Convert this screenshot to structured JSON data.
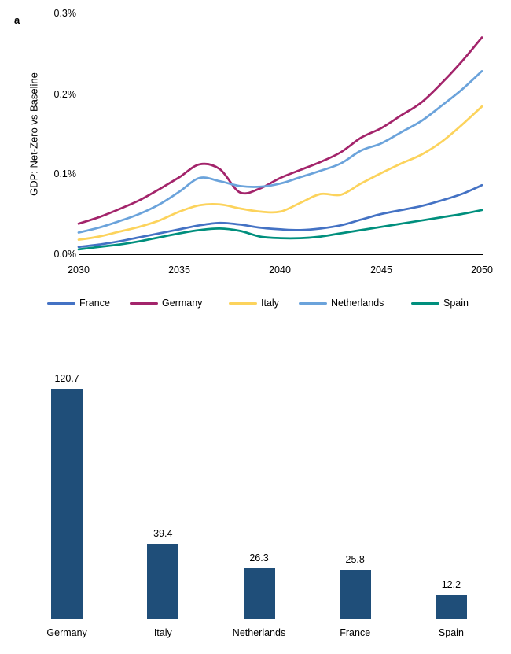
{
  "panel_label": "a",
  "chart_data": [
    {
      "type": "line",
      "y_axis_title": "GDP: Net-Zero vs Baseline",
      "unit": "%",
      "ylim": [
        0.0,
        0.3
      ],
      "y_ticks": [
        "0.3%",
        "0.2%",
        "0.1%",
        "0.0%"
      ],
      "x_ticks": [
        "2030",
        "2035",
        "2040",
        "2045",
        "2050"
      ],
      "xlim": [
        2030,
        2050
      ],
      "grid": false,
      "legend_position": "bottom",
      "x": [
        2030,
        2031,
        2032,
        2033,
        2034,
        2035,
        2036,
        2037,
        2038,
        2039,
        2040,
        2041,
        2042,
        2043,
        2044,
        2045,
        2046,
        2047,
        2048,
        2049,
        2050
      ],
      "series": [
        {
          "name": "France",
          "color": "#4472C4",
          "values": [
            0.009,
            0.012,
            0.016,
            0.021,
            0.026,
            0.031,
            0.036,
            0.039,
            0.037,
            0.033,
            0.031,
            0.03,
            0.032,
            0.036,
            0.043,
            0.05,
            0.055,
            0.06,
            0.067,
            0.075,
            0.086
          ]
        },
        {
          "name": "Germany",
          "color": "#A3246B",
          "values": [
            0.038,
            0.046,
            0.056,
            0.067,
            0.081,
            0.096,
            0.112,
            0.106,
            0.077,
            0.082,
            0.095,
            0.105,
            0.115,
            0.127,
            0.145,
            0.157,
            0.173,
            0.189,
            0.213,
            0.24,
            0.27
          ]
        },
        {
          "name": "Italy",
          "color": "#FCD35C",
          "values": [
            0.018,
            0.022,
            0.028,
            0.034,
            0.042,
            0.053,
            0.061,
            0.062,
            0.057,
            0.053,
            0.053,
            0.064,
            0.075,
            0.074,
            0.088,
            0.101,
            0.113,
            0.124,
            0.14,
            0.161,
            0.184
          ]
        },
        {
          "name": "Netherlands",
          "color": "#6BA3DB",
          "values": [
            0.027,
            0.033,
            0.041,
            0.05,
            0.062,
            0.078,
            0.095,
            0.091,
            0.085,
            0.084,
            0.088,
            0.096,
            0.104,
            0.113,
            0.129,
            0.138,
            0.152,
            0.166,
            0.185,
            0.205,
            0.228
          ]
        },
        {
          "name": "Spain",
          "color": "#008F7D",
          "values": [
            0.006,
            0.009,
            0.012,
            0.016,
            0.021,
            0.026,
            0.03,
            0.032,
            0.029,
            0.022,
            0.02,
            0.02,
            0.022,
            0.026,
            0.03,
            0.034,
            0.038,
            0.042,
            0.046,
            0.05,
            0.055
          ]
        }
      ]
    },
    {
      "type": "bar",
      "bar_color": "#1F4E79",
      "categories": [
        "Germany",
        "Italy",
        "Netherlands",
        "France",
        "Spain"
      ],
      "values": [
        120.7,
        39.4,
        26.3,
        25.8,
        12.2
      ],
      "value_labels": [
        "120.7",
        "39.4",
        "26.3",
        "25.8",
        "12.2"
      ]
    }
  ]
}
